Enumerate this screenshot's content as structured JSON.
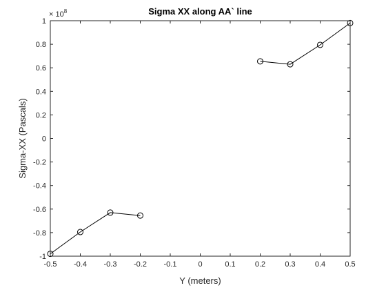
{
  "chart_data": {
    "type": "line",
    "title": "Sigma XX along AA` line",
    "xlabel": "Y (meters)",
    "ylabel": "Sigma-XX (Pascals)",
    "xlim": [
      -0.5,
      0.5
    ],
    "ylim": [
      -1,
      1
    ],
    "x_ticks": [
      -0.5,
      -0.4,
      -0.3,
      -0.2,
      -0.1,
      0,
      0.1,
      0.2,
      0.3,
      0.4,
      0.5
    ],
    "x_tick_labels": [
      "-0.5",
      "-0.4",
      "-0.3",
      "-0.2",
      "-0.1",
      "0",
      "0.1",
      "0.2",
      "0.3",
      "0.4",
      "0.5"
    ],
    "y_ticks": [
      -1,
      -0.8,
      -0.6,
      -0.4,
      -0.2,
      0,
      0.2,
      0.4,
      0.6,
      0.8,
      1
    ],
    "y_tick_labels": [
      "-1",
      "-0.8",
      "-0.6",
      "-0.4",
      "-0.2",
      "0",
      "0.2",
      "0.4",
      "0.6",
      "0.8",
      "1"
    ],
    "y_multiplier": {
      "prefix": "× 10",
      "exponent": "8"
    },
    "grid": false,
    "marker": "circle",
    "line_color": "#000000",
    "series": [
      {
        "segments": [
          {
            "x": [
              -0.5,
              -0.4,
              -0.3,
              -0.2
            ],
            "y": [
              -0.98,
              -0.795,
              -0.63,
              -0.655
            ]
          },
          {
            "x": [
              0.2,
              0.3,
              0.4,
              0.5
            ],
            "y": [
              0.655,
              0.63,
              0.795,
              0.98
            ]
          }
        ]
      }
    ]
  }
}
